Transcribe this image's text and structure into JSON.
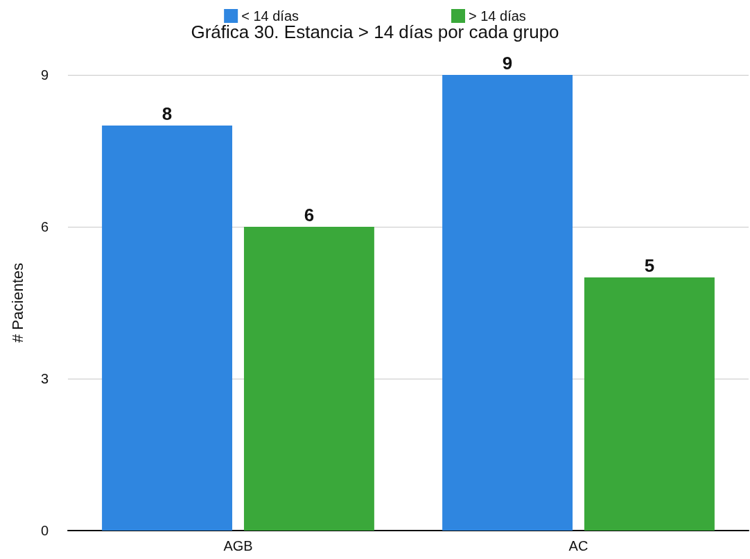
{
  "chart_data": {
    "type": "bar",
    "title": "Gráfica 30. Estancia > 14 días por cada grupo",
    "ylabel": "# Pacientes",
    "categories": [
      "AGB",
      "AC"
    ],
    "series": [
      {
        "name": "< 14 días",
        "color": "#2f86e0",
        "values": [
          8,
          9
        ]
      },
      {
        "name": "> 14 días",
        "color": "#3aa83a",
        "values": [
          6,
          5
        ]
      }
    ],
    "ylim": [
      0,
      9
    ],
    "yticks": [
      0,
      3,
      6,
      9
    ],
    "grid": "y",
    "legend": "top",
    "data_labels": true
  }
}
